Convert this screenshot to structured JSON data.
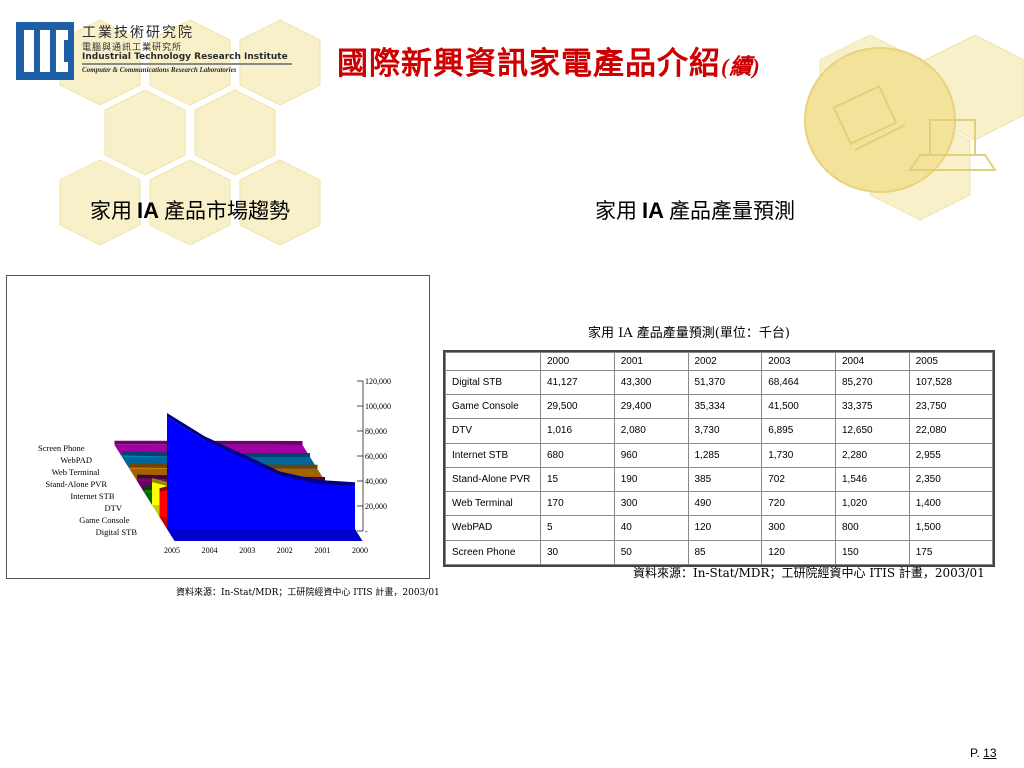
{
  "logo": {
    "line1": "工業技術研究院",
    "line2": "電腦與通訊工業研究所",
    "line3": "Industrial Technology Research Institute",
    "line4": "Computer & Communications Research Laboratories"
  },
  "title": {
    "main": "國際新興資訊家電產品介紹",
    "suffix": "(續)"
  },
  "left_panel": {
    "subtitle_pre": "家用",
    "subtitle_ia": "IA",
    "subtitle_post": "產品市場趨勢",
    "source": "資料來源：In-Stat/MDR；工研院經資中心 ITIS 計畫，2003/01"
  },
  "right_panel": {
    "subtitle_pre": "家用",
    "subtitle_ia": "IA",
    "subtitle_post": "產品產量預測",
    "caption": "家用 IA 產品產量預測(單位：千台)",
    "source": "資料來源：In-Stat/MDR；工研院經資中心 ITIS 計畫，2003/01"
  },
  "table": {
    "header": [
      "",
      "2000",
      "2001",
      "2002",
      "2003",
      "2004",
      "2005"
    ],
    "rows": [
      [
        "Digital STB",
        "41,127",
        "43,300",
        "51,370",
        "68,464",
        "85,270",
        "107,528"
      ],
      [
        "Game Console",
        "29,500",
        "29,400",
        "35,334",
        "41,500",
        "33,375",
        "23,750"
      ],
      [
        "DTV",
        "1,016",
        "2,080",
        "3,730",
        "6,895",
        "12,650",
        "22,080"
      ],
      [
        "Internet STB",
        "680",
        "960",
        "1,285",
        "1,730",
        "2,280",
        "2,955"
      ],
      [
        "Stand-Alone PVR",
        "15",
        "190",
        "385",
        "702",
        "1,546",
        "2,350"
      ],
      [
        "Web Terminal",
        "170",
        "300",
        "490",
        "720",
        "1,020",
        "1,400"
      ],
      [
        "WebPAD",
        "5",
        "40",
        "120",
        "300",
        "800",
        "1,500"
      ],
      [
        "Screen Phone",
        "30",
        "50",
        "85",
        "120",
        "150",
        "175"
      ]
    ]
  },
  "chart_data": {
    "type": "area",
    "x": [
      "2005",
      "2004",
      "2003",
      "2002",
      "2001",
      "2000"
    ],
    "ylim": [
      0,
      120000
    ],
    "yticks": [
      "120,000",
      "100,000",
      "80,000",
      "60,000",
      "40,000",
      "20,000",
      "-"
    ],
    "series": [
      {
        "name": "Digital STB",
        "color": "#0000ff",
        "values": [
          107528,
          85270,
          68464,
          51370,
          43300,
          41127
        ]
      },
      {
        "name": "Game Console",
        "color": "#ff0000",
        "values": [
          23750,
          33375,
          41500,
          35334,
          29400,
          29500
        ]
      },
      {
        "name": "DTV",
        "color": "#ffff00",
        "values": [
          22080,
          12650,
          6895,
          3730,
          2080,
          1016
        ]
      },
      {
        "name": "Internet STB",
        "color": "#008000",
        "values": [
          2955,
          2280,
          1730,
          1285,
          960,
          680
        ]
      },
      {
        "name": "Stand-Alone PVR",
        "color": "#800080",
        "values": [
          2350,
          1546,
          702,
          385,
          190,
          15
        ]
      },
      {
        "name": "Web Terminal",
        "color": "#cc7a00",
        "values": [
          1400,
          1020,
          720,
          490,
          300,
          170
        ]
      },
      {
        "name": "WebPAD",
        "color": "#0080c0",
        "values": [
          1500,
          800,
          300,
          120,
          40,
          5
        ]
      },
      {
        "name": "Screen Phone",
        "color": "#cc00cc",
        "values": [
          175,
          150,
          120,
          85,
          50,
          30
        ]
      }
    ]
  },
  "page": {
    "prefix": "P.",
    "number": "13"
  },
  "colors": {
    "title": "#cc0000",
    "logo_blue": "#1f5fa8",
    "deco_yellow": "#f6e7a6"
  }
}
